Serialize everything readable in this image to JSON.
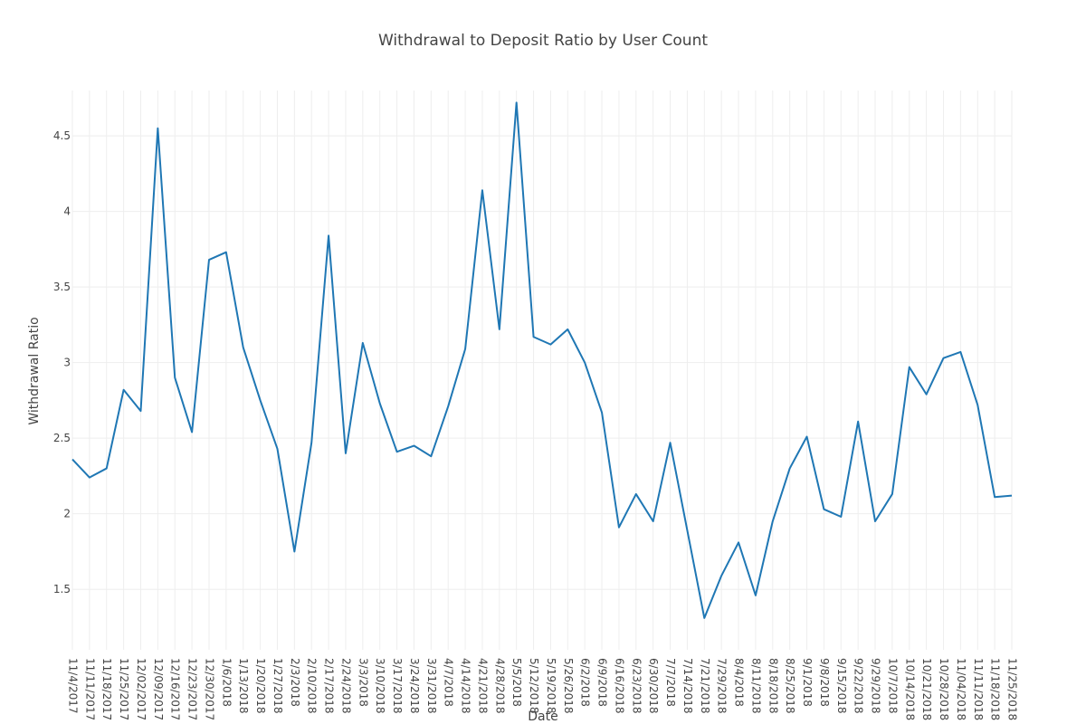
{
  "chart_data": {
    "type": "line",
    "title": "Withdrawal to Deposit Ratio by User Count",
    "xlabel": "Date",
    "ylabel": "Withdrawal Ratio",
    "ylim": [
      1.1,
      4.8
    ],
    "yticks": [
      1.5,
      2,
      2.5,
      3,
      3.5,
      4,
      4.5
    ],
    "ytick_labels": [
      "1.5",
      "2",
      "2.5",
      "3",
      "3.5",
      "4",
      "4.5"
    ],
    "grid": true,
    "line_color": "#1f77b4",
    "categories": [
      "11/4/2017",
      "11/11/2017",
      "11/18/2017",
      "11/25/2017",
      "12/02/2017",
      "12/09/2017",
      "12/16/2017",
      "12/23/2017",
      "12/30/2017",
      "1/6/2018",
      "1/13/2018",
      "1/20/2018",
      "1/27/2018",
      "2/3/2018",
      "2/10/2018",
      "2/17/2018",
      "2/24/2018",
      "3/3/2018",
      "3/10/2018",
      "3/17/2018",
      "3/24/2018",
      "3/31/2018",
      "4/7/2018",
      "4/14/2018",
      "4/21/2018",
      "4/28/2018",
      "5/5/2018",
      "5/12/2018",
      "5/19/2018",
      "5/26/2018",
      "6/2/2018",
      "6/9/2018",
      "6/16/2018",
      "6/23/2018",
      "6/30/2018",
      "7/7/2018",
      "7/14/2018",
      "7/21/2018",
      "7/29/2018",
      "8/4/2018",
      "8/11/2018",
      "8/18/2018",
      "8/25/2018",
      "9/1/2018",
      "9/8/2018",
      "9/15/2018",
      "9/22/2018",
      "9/29/2018",
      "10/7/2018",
      "10/14/2018",
      "10/21/2018",
      "10/28/2018",
      "11/04/2018",
      "11/11/2018",
      "11/18/2018",
      "11/25/2018"
    ],
    "series": [
      {
        "values": [
          2.36,
          2.24,
          2.3,
          2.82,
          2.68,
          4.55,
          2.9,
          2.54,
          3.68,
          3.73,
          3.1,
          2.75,
          2.43,
          1.75,
          2.47,
          3.84,
          2.4,
          3.13,
          2.73,
          2.41,
          2.45,
          2.38,
          2.71,
          3.09,
          4.14,
          3.22,
          4.72,
          3.17,
          3.12,
          3.22,
          3.0,
          2.67,
          1.91,
          2.13,
          1.95,
          2.47,
          1.89,
          1.31,
          1.59,
          1.81,
          1.46,
          1.95,
          2.3,
          2.51,
          2.03,
          1.98,
          2.61,
          1.95,
          2.13,
          2.97,
          2.79,
          3.03,
          3.07,
          2.72,
          2.11,
          2.12
        ]
      }
    ]
  }
}
